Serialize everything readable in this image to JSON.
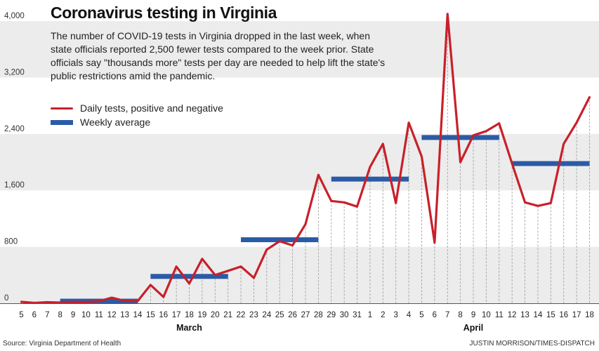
{
  "title": "Coronavirus testing in Virginia",
  "description": "The number of COVID-19 tests in Virginia dropped in the last week, when state officials reported 2,500 fewer tests compared to the week prior. State officials say \"thousands more\" tests per day are needed to help lift the state's public restrictions amid the pandemic.",
  "legend": {
    "daily_label": "Daily tests, positive and negative",
    "weekly_label": "Weekly average"
  },
  "source": "Source: Virginia Department of Health",
  "credit": "JUSTIN MORRISON/TIMES-DISPATCH",
  "colors": {
    "daily": "#c8202a",
    "weekly": "#2b5ba6",
    "band": "#ececec",
    "grid": "#9a9a9a"
  },
  "chart_data": {
    "type": "line",
    "title": "Coronavirus testing in Virginia",
    "xlabel": "",
    "ylabel": "",
    "ylim": [
      0,
      4000
    ],
    "yticks": [
      0,
      800,
      1600,
      2400,
      3200,
      4000
    ],
    "ytick_labels": [
      "0",
      "800",
      "1,600",
      "2,400",
      "3,200",
      "4,000"
    ],
    "categories": [
      "5",
      "6",
      "7",
      "8",
      "9",
      "10",
      "11",
      "12",
      "13",
      "14",
      "15",
      "16",
      "17",
      "18",
      "19",
      "20",
      "21",
      "22",
      "23",
      "24",
      "25",
      "26",
      "27",
      "28",
      "29",
      "30",
      "31",
      "1",
      "2",
      "3",
      "4",
      "5",
      "6",
      "7",
      "8",
      "9",
      "10",
      "11",
      "12",
      "13",
      "14",
      "15",
      "16",
      "17",
      "18"
    ],
    "month_labels": [
      {
        "label": "March",
        "at_index": 13
      },
      {
        "label": "April",
        "at_index": 35
      }
    ],
    "series": [
      {
        "name": "Daily tests, positive and negative",
        "values": [
          20,
          5,
          15,
          10,
          20,
          15,
          30,
          80,
          35,
          30,
          260,
          90,
          520,
          280,
          630,
          400,
          460,
          520,
          360,
          760,
          880,
          820,
          1120,
          1820,
          1450,
          1430,
          1370,
          1930,
          2260,
          1420,
          2560,
          2080,
          860,
          4100,
          2000,
          2380,
          2440,
          2550,
          1980,
          1430,
          1380,
          1420,
          2260,
          2560,
          2920
        ]
      },
      {
        "name": "Weekly average",
        "segments": [
          {
            "start_index": 3,
            "end_index": 9,
            "value": 30
          },
          {
            "start_index": 10,
            "end_index": 16,
            "value": 380
          },
          {
            "start_index": 17,
            "end_index": 23,
            "value": 900
          },
          {
            "start_index": 24,
            "end_index": 30,
            "value": 1760
          },
          {
            "start_index": 31,
            "end_index": 37,
            "value": 2350
          },
          {
            "start_index": 38,
            "end_index": 44,
            "value": 1980
          }
        ]
      }
    ]
  }
}
